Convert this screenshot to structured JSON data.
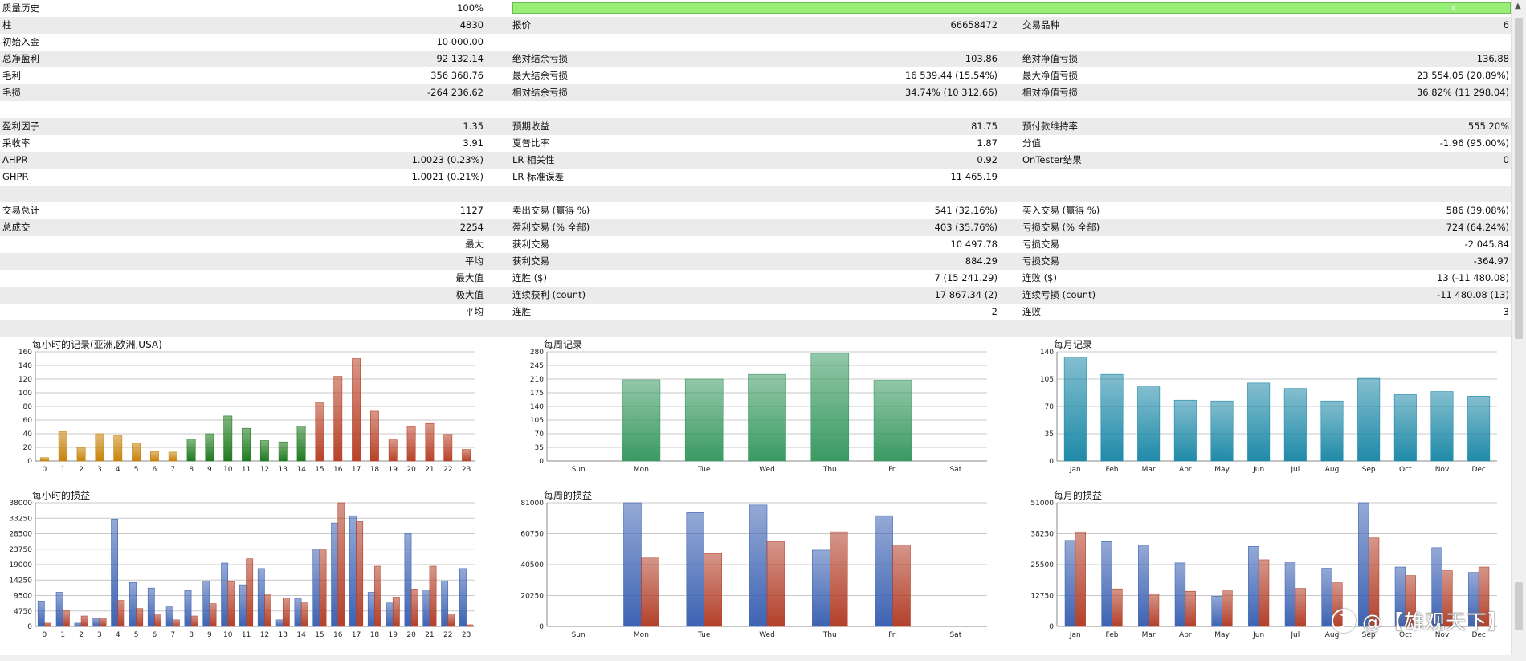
{
  "quality": {
    "label": "质量历史",
    "value": "100%",
    "fraction": 1.0
  },
  "rows": [
    {
      "c0": "柱",
      "c1": "4830",
      "c2": "报价",
      "c3": "66658472",
      "c4": "交易品种",
      "c5": "6"
    },
    {
      "c0": "初始入金",
      "c1": "10 000.00",
      "c2": "",
      "c3": "",
      "c4": "",
      "c5": ""
    },
    {
      "c0": "总净盈利",
      "c1": "92 132.14",
      "c2": "绝对结余亏损",
      "c3": "103.86",
      "c4": "绝对净值亏损",
      "c5": "136.88"
    },
    {
      "c0": "毛利",
      "c1": "356 368.76",
      "c2": "最大结余亏损",
      "c3": "16 539.44 (15.54%)",
      "c4": "最大净值亏损",
      "c5": "23 554.05 (20.89%)"
    },
    {
      "c0": "毛损",
      "c1": "-264 236.62",
      "c2": "相对结余亏损",
      "c3": "34.74% (10 312.66)",
      "c4": "相对净值亏损",
      "c5": "36.82% (11 298.04)"
    },
    {
      "c0": "",
      "c1": "",
      "c2": "",
      "c3": "",
      "c4": "",
      "c5": ""
    },
    {
      "c0": "盈利因子",
      "c1": "1.35",
      "c2": "预期收益",
      "c3": "81.75",
      "c4": "预付款维持率",
      "c5": "555.20%"
    },
    {
      "c0": "采收率",
      "c1": "3.91",
      "c2": "夏普比率",
      "c3": "1.87",
      "c4": "分值",
      "c5": "-1.96 (95.00%)"
    },
    {
      "c0": "AHPR",
      "c1": "1.0023 (0.23%)",
      "c2": "LR 相关性",
      "c3": "0.92",
      "c4": "OnTester结果",
      "c5": "0"
    },
    {
      "c0": "GHPR",
      "c1": "1.0021 (0.21%)",
      "c2": "LR 标准误差",
      "c3": "11 465.19",
      "c4": "",
      "c5": ""
    },
    {
      "c0": "",
      "c1": "",
      "c2": "",
      "c3": "",
      "c4": "",
      "c5": ""
    },
    {
      "c0": "交易总计",
      "c1": "1127",
      "c2": "卖出交易 (赢得 %)",
      "c3": "541 (32.16%)",
      "c4": "买入交易 (赢得 %)",
      "c5": "586 (39.08%)"
    },
    {
      "c0": "总成交",
      "c1": "2254",
      "c2": "盈利交易 (% 全部)",
      "c3": "403 (35.76%)",
      "c4": "亏损交易 (% 全部)",
      "c5": "724 (64.24%)"
    },
    {
      "c0": "",
      "c1": "最大",
      "c2": "获利交易",
      "c3": "10 497.78",
      "c4": "亏损交易",
      "c5": "-2 045.84"
    },
    {
      "c0": "",
      "c1": "平均",
      "c2": "获利交易",
      "c3": "884.29",
      "c4": "亏损交易",
      "c5": "-364.97"
    },
    {
      "c0": "",
      "c1": "最大值",
      "c2": "连胜 ($)",
      "c3": "7 (15 241.29)",
      "c4": "连败 ($)",
      "c5": "13 (-11 480.08)"
    },
    {
      "c0": "",
      "c1": "极大值",
      "c2": "连续获利 (count)",
      "c3": "17 867.34 (2)",
      "c4": "连续亏损 (count)",
      "c5": "-11 480.08 (13)"
    },
    {
      "c0": "",
      "c1": "平均",
      "c2": "连胜",
      "c3": "2",
      "c4": "连败",
      "c5": "3"
    },
    {
      "c0": "",
      "c1": "",
      "c2": "",
      "c3": "",
      "c4": "",
      "c5": ""
    }
  ],
  "colors": {
    "orange": "#c8820a",
    "green": "#1e7a1e",
    "red": "#b84228",
    "weekly_green": "#3a9a62",
    "monthly_teal": "#1f8aa8",
    "pl_blue": "#3d63b3",
    "pl_red": "#b3402a",
    "quality_bar": "#99ee77"
  },
  "chart_data": [
    {
      "id": "hourly-count",
      "type": "bar",
      "title": "每小时的记录(亚洲,欧洲,USA)",
      "categories": [
        "0",
        "1",
        "2",
        "3",
        "4",
        "5",
        "6",
        "7",
        "8",
        "9",
        "10",
        "11",
        "12",
        "13",
        "14",
        "15",
        "16",
        "17",
        "18",
        "19",
        "20",
        "21",
        "22",
        "23"
      ],
      "values": [
        5,
        43,
        20,
        40,
        37,
        26,
        14,
        13,
        32,
        40,
        66,
        48,
        30,
        28,
        51,
        86,
        124,
        150,
        73,
        31,
        50,
        55,
        39,
        17
      ],
      "bar_colors": [
        "orange",
        "orange",
        "orange",
        "orange",
        "orange",
        "orange",
        "orange",
        "orange",
        "green",
        "green",
        "green",
        "green",
        "green",
        "green",
        "green",
        "red",
        "red",
        "red",
        "red",
        "red",
        "red",
        "red",
        "red",
        "red"
      ],
      "yticks": [
        0,
        20,
        40,
        60,
        80,
        100,
        120,
        140,
        160
      ],
      "ylim": [
        0,
        160
      ],
      "grid": true
    },
    {
      "id": "weekly-count",
      "type": "bar",
      "title": "每周记录",
      "categories": [
        "Sun",
        "Mon",
        "Tue",
        "Wed",
        "Thu",
        "Fri",
        "Sat"
      ],
      "values": [
        0,
        208,
        210,
        222,
        276,
        207,
        0
      ],
      "yticks": [
        0,
        35,
        70,
        105,
        140,
        175,
        210,
        245,
        280
      ],
      "ylim": [
        0,
        280
      ],
      "grid": true
    },
    {
      "id": "monthly-count",
      "type": "bar",
      "title": "每月记录",
      "categories": [
        "Jan",
        "Feb",
        "Mar",
        "Apr",
        "May",
        "Jun",
        "Jul",
        "Aug",
        "Sep",
        "Oct",
        "Nov",
        "Dec"
      ],
      "values": [
        133,
        111,
        96,
        78,
        77,
        100,
        93,
        77,
        106,
        85,
        89,
        83
      ],
      "yticks": [
        0,
        35,
        70,
        105,
        140
      ],
      "ylim": [
        0,
        140
      ],
      "grid": true
    },
    {
      "id": "hourly-pl",
      "type": "bar",
      "title": "每小时的损益",
      "categories": [
        "0",
        "1",
        "2",
        "3",
        "4",
        "5",
        "6",
        "7",
        "8",
        "9",
        "10",
        "11",
        "12",
        "13",
        "14",
        "15",
        "16",
        "17",
        "18",
        "19",
        "20",
        "21",
        "22",
        "23"
      ],
      "series": [
        {
          "color": "pl_blue",
          "values": [
            7800,
            10500,
            1000,
            2500,
            33000,
            13500,
            11800,
            6000,
            11000,
            14000,
            19500,
            12800,
            17800,
            2000,
            8500,
            23800,
            31800,
            34000,
            10500,
            7200,
            28500,
            11200,
            14000,
            17800
          ]
        },
        {
          "color": "pl_red",
          "values": [
            1000,
            4800,
            3200,
            2600,
            8000,
            5500,
            3800,
            2000,
            3200,
            7000,
            13800,
            20800,
            10000,
            8800,
            7500,
            23500,
            38000,
            32200,
            18500,
            9000,
            11500,
            18500,
            3800,
            500
          ]
        }
      ],
      "yticks": [
        0,
        4750,
        9500,
        14250,
        19000,
        23750,
        28500,
        33250,
        38000
      ],
      "ylim": [
        0,
        38000
      ],
      "grid": true
    },
    {
      "id": "weekly-pl",
      "type": "bar",
      "title": "每周的损益",
      "categories": [
        "Sun",
        "Mon",
        "Tue",
        "Wed",
        "Thu",
        "Fri",
        "Sat"
      ],
      "series": [
        {
          "color": "pl_blue",
          "values": [
            0,
            81000,
            74500,
            79500,
            50000,
            72500,
            0
          ]
        },
        {
          "color": "pl_red",
          "values": [
            0,
            44800,
            47800,
            55500,
            62000,
            53500,
            0
          ]
        }
      ],
      "yticks": [
        0,
        20250,
        40500,
        60750,
        81000
      ],
      "ylim": [
        0,
        81000
      ],
      "grid": true
    },
    {
      "id": "monthly-pl",
      "type": "bar",
      "title": "每月的损益",
      "categories": [
        "Jan",
        "Feb",
        "Mar",
        "Apr",
        "May",
        "Jun",
        "Jul",
        "Aug",
        "Sep",
        "Oct",
        "Nov",
        "Dec"
      ],
      "series": [
        {
          "color": "pl_blue",
          "values": [
            35500,
            35000,
            33500,
            26200,
            12500,
            33000,
            26300,
            24000,
            51000,
            24500,
            32500,
            22300
          ]
        },
        {
          "color": "pl_red",
          "values": [
            39000,
            15500,
            13500,
            14500,
            15000,
            27500,
            15700,
            18000,
            36500,
            21000,
            23000,
            24500
          ]
        }
      ],
      "yticks": [
        0,
        12750,
        25500,
        38250,
        51000
      ],
      "ylim": [
        0,
        51000
      ],
      "grid": true
    }
  ],
  "watermark": {
    "text": "@【雄观天下】",
    "icon": "zhihu-logo-icon"
  }
}
